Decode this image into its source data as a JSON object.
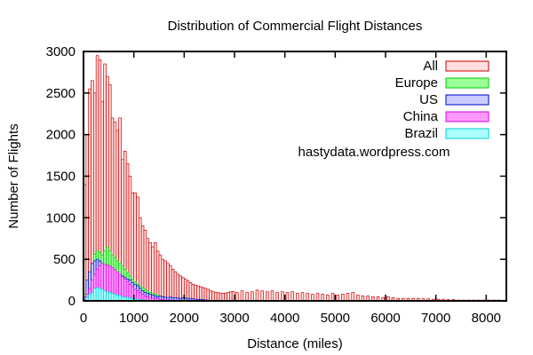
{
  "chart_data": {
    "type": "bar",
    "title": "Distribution of Commercial Flight Distances",
    "xlabel": "Distance (miles)",
    "ylabel": "Number of Flights",
    "xlim": [
      0,
      8400
    ],
    "ylim": [
      0,
      3000
    ],
    "xticks": [
      "0",
      "1000",
      "2000",
      "3000",
      "4000",
      "5000",
      "6000",
      "7000",
      "8000"
    ],
    "yticks": [
      "0",
      "500",
      "1000",
      "1500",
      "2000",
      "2500",
      "3000"
    ],
    "bin_width": 50,
    "grid": false,
    "legend_position": "top-right",
    "annotation": "hastydata.wordpress.com",
    "annotation_color": "#0000cc",
    "series": [
      {
        "name": "All",
        "color": "#cc0000",
        "fill": "#ffdede",
        "x": [
          25,
          75,
          125,
          175,
          225,
          275,
          325,
          375,
          425,
          475,
          525,
          575,
          625,
          675,
          725,
          775,
          825,
          875,
          925,
          975,
          1025,
          1075,
          1125,
          1175,
          1225,
          1275,
          1325,
          1375,
          1425,
          1475,
          1525,
          1575,
          1625,
          1675,
          1725,
          1775,
          1825,
          1875,
          1925,
          1975,
          2025,
          2075,
          2125,
          2175,
          2225,
          2275,
          2325,
          2375,
          2425,
          2475,
          2525,
          2575,
          2625,
          2675,
          2725,
          2775,
          2825,
          2875,
          2925,
          2975,
          3050,
          3150,
          3250,
          3350,
          3450,
          3550,
          3650,
          3750,
          3850,
          3950,
          4050,
          4150,
          4250,
          4350,
          4450,
          4550,
          4650,
          4750,
          4850,
          4950,
          5050,
          5150,
          5250,
          5350,
          5450,
          5550,
          5650,
          5750,
          5850,
          5950,
          6050,
          6150,
          6250,
          6350,
          6450,
          6550,
          6650,
          6750,
          6850,
          6950,
          7050,
          7150,
          7250,
          7350,
          7450,
          7550,
          7650,
          7750,
          7850,
          7950,
          8050,
          8150,
          8250
        ],
        "values": [
          1400,
          2000,
          2550,
          2650,
          2500,
          2950,
          2900,
          2400,
          2850,
          2700,
          2600,
          2200,
          2150,
          2050,
          2200,
          1700,
          1800,
          1650,
          1500,
          1300,
          1300,
          1250,
          1000,
          900,
          850,
          750,
          700,
          650,
          700,
          600,
          550,
          500,
          480,
          450,
          420,
          380,
          350,
          320,
          300,
          280,
          260,
          240,
          220,
          200,
          190,
          180,
          170,
          160,
          150,
          140,
          120,
          110,
          100,
          100,
          90,
          90,
          95,
          100,
          110,
          110,
          100,
          120,
          100,
          110,
          130,
          120,
          110,
          120,
          100,
          110,
          100,
          110,
          90,
          100,
          90,
          80,
          90,
          80,
          70,
          90,
          70,
          80,
          90,
          100,
          70,
          60,
          60,
          50,
          50,
          40,
          50,
          40,
          30,
          30,
          30,
          30,
          30,
          25,
          25,
          20,
          20,
          20,
          15,
          15,
          10,
          10,
          10,
          10,
          10,
          10,
          10,
          10,
          10
        ]
      },
      {
        "name": "Europe",
        "color": "#00cc00",
        "fill": "#99ff99",
        "x": [
          25,
          75,
          125,
          175,
          225,
          275,
          325,
          375,
          425,
          475,
          525,
          575,
          625,
          675,
          725,
          775,
          825,
          875,
          925,
          975,
          1025,
          1075,
          1125,
          1175,
          1225,
          1275,
          1325,
          1375,
          1425,
          1475,
          1525,
          1575,
          1625,
          1675,
          1725,
          1775,
          1825,
          1875,
          1925,
          1975
        ],
        "values": [
          80,
          200,
          350,
          450,
          560,
          600,
          580,
          550,
          600,
          650,
          600,
          550,
          520,
          480,
          450,
          420,
          380,
          340,
          300,
          260,
          230,
          200,
          180,
          160,
          140,
          120,
          100,
          90,
          80,
          70,
          60,
          50,
          40,
          35,
          30,
          25,
          20,
          15,
          10,
          10
        ]
      },
      {
        "name": "US",
        "color": "#0000cc",
        "fill": "#ccccff",
        "x": [
          25,
          75,
          125,
          175,
          225,
          275,
          325,
          375,
          425,
          475,
          525,
          575,
          625,
          675,
          725,
          775,
          825,
          875,
          925,
          975,
          1025,
          1075,
          1125,
          1175,
          1225,
          1275,
          1325,
          1375,
          1425,
          1475,
          1525,
          1575,
          1625,
          1675,
          1725,
          1775,
          1825,
          1875,
          1925,
          1975,
          2025,
          2075,
          2125,
          2175,
          2225,
          2275,
          2325,
          2375,
          2425,
          2475
        ],
        "values": [
          50,
          250,
          350,
          450,
          480,
          500,
          480,
          420,
          400,
          380,
          350,
          330,
          300,
          290,
          280,
          300,
          280,
          260,
          250,
          220,
          200,
          180,
          150,
          120,
          100,
          90,
          80,
          70,
          60,
          50,
          60,
          50,
          45,
          40,
          45,
          40,
          35,
          35,
          30,
          40,
          35,
          30,
          30,
          25,
          20,
          20,
          15,
          15,
          10,
          10
        ]
      },
      {
        "name": "China",
        "color": "#dd00dd",
        "fill": "#ff99ff",
        "x": [
          25,
          75,
          125,
          175,
          225,
          275,
          325,
          375,
          425,
          475,
          525,
          575,
          625,
          675,
          725,
          775,
          825,
          875,
          925,
          975,
          1025,
          1075,
          1125,
          1175,
          1225,
          1275,
          1325,
          1375,
          1425,
          1475,
          1525,
          1575,
          1625,
          1675,
          1725,
          1775
        ],
        "values": [
          20,
          80,
          150,
          250,
          320,
          380,
          420,
          450,
          440,
          430,
          420,
          400,
          380,
          350,
          320,
          290,
          260,
          230,
          200,
          170,
          140,
          120,
          100,
          80,
          60,
          50,
          40,
          35,
          30,
          25,
          20,
          15,
          10,
          10,
          10,
          5
        ]
      },
      {
        "name": "Brazil",
        "color": "#00cccc",
        "fill": "#aaffff",
        "x": [
          25,
          75,
          125,
          175,
          225,
          275,
          325,
          375,
          425,
          475,
          525,
          575,
          625,
          675,
          725,
          775,
          825,
          875,
          925,
          975,
          1025,
          1075,
          1125,
          1175,
          1225,
          1275,
          1325,
          1375,
          1425,
          1475
        ],
        "values": [
          10,
          40,
          80,
          100,
          150,
          160,
          150,
          140,
          120,
          110,
          100,
          90,
          80,
          70,
          60,
          50,
          45,
          40,
          35,
          30,
          25,
          20,
          15,
          12,
          10,
          8,
          6,
          5,
          4,
          3
        ]
      }
    ]
  }
}
